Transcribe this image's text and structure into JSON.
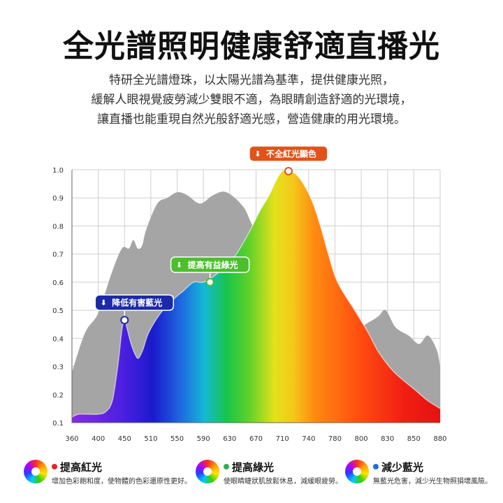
{
  "page": {
    "title": "全光譜照明健康舒適直播光",
    "description_lines": [
      "特研全光譜燈珠，以太陽光譜為基準，提供健康光照，",
      "緩解人眼視覺疲勞減少雙眼不適，為眼睛創造舒適的光環境，",
      "讓直播也能重現自然光般舒適光感，營造健康的用光環境。"
    ]
  },
  "chart_data": {
    "type": "area",
    "title": "",
    "xlabel": "",
    "ylabel": "",
    "xlim": [
      360,
      880
    ],
    "ylim": [
      0.1,
      1.0
    ],
    "x_ticks": [
      360,
      400,
      450,
      510,
      550,
      590,
      630,
      670,
      710,
      740,
      780,
      800,
      830,
      850,
      880
    ],
    "y_ticks": [
      0.1,
      0.2,
      0.3,
      0.4,
      0.5,
      0.6,
      0.7,
      0.8,
      0.9,
      1.0
    ],
    "grid": true,
    "series": [
      {
        "style": "gray-filled-area",
        "points": [
          [
            360,
            0.28
          ],
          [
            380,
            0.42
          ],
          [
            400,
            0.49
          ],
          [
            425,
            0.63
          ],
          [
            445,
            0.72
          ],
          [
            460,
            0.72
          ],
          [
            470,
            0.75
          ],
          [
            480,
            0.72
          ],
          [
            490,
            0.73
          ],
          [
            500,
            0.79
          ],
          [
            520,
            0.88
          ],
          [
            535,
            0.9
          ],
          [
            550,
            0.92
          ],
          [
            565,
            0.91
          ],
          [
            585,
            0.88
          ],
          [
            605,
            0.91
          ],
          [
            625,
            0.92
          ],
          [
            650,
            0.87
          ],
          [
            665,
            0.8
          ],
          [
            690,
            0.7
          ],
          [
            720,
            0.68
          ],
          [
            745,
            0.66
          ],
          [
            760,
            0.62
          ],
          [
            770,
            0.56
          ],
          [
            783,
            0.52
          ],
          [
            795,
            0.44
          ],
          [
            810,
            0.46
          ],
          [
            820,
            0.48
          ],
          [
            828,
            0.5
          ],
          [
            836,
            0.44
          ],
          [
            846,
            0.41
          ],
          [
            856,
            0.38
          ],
          [
            866,
            0.41
          ],
          [
            876,
            0.36
          ],
          [
            880,
            0.3
          ]
        ]
      },
      {
        "style": "rainbow-filled-area",
        "points": [
          [
            360,
            0.12
          ],
          [
            370,
            0.13
          ],
          [
            385,
            0.13
          ],
          [
            400,
            0.13
          ],
          [
            415,
            0.14
          ],
          [
            427,
            0.18
          ],
          [
            437,
            0.3
          ],
          [
            445,
            0.43
          ],
          [
            450,
            0.47
          ],
          [
            455,
            0.44
          ],
          [
            465,
            0.38
          ],
          [
            475,
            0.34
          ],
          [
            482,
            0.33
          ],
          [
            492,
            0.36
          ],
          [
            505,
            0.42
          ],
          [
            525,
            0.49
          ],
          [
            545,
            0.54
          ],
          [
            560,
            0.57
          ],
          [
            575,
            0.6
          ],
          [
            590,
            0.6
          ],
          [
            605,
            0.62
          ],
          [
            620,
            0.65
          ],
          [
            640,
            0.7
          ],
          [
            660,
            0.78
          ],
          [
            675,
            0.85
          ],
          [
            690,
            0.91
          ],
          [
            700,
            0.96
          ],
          [
            708,
            0.99
          ],
          [
            715,
            1.0
          ],
          [
            723,
            0.99
          ],
          [
            732,
            0.96
          ],
          [
            745,
            0.89
          ],
          [
            758,
            0.8
          ],
          [
            770,
            0.7
          ],
          [
            782,
            0.6
          ],
          [
            795,
            0.5
          ],
          [
            808,
            0.42
          ],
          [
            820,
            0.35
          ],
          [
            835,
            0.28
          ],
          [
            850,
            0.22
          ],
          [
            865,
            0.18
          ],
          [
            875,
            0.16
          ],
          [
            880,
            0.15
          ]
        ]
      }
    ],
    "annotations": [
      {
        "label": "降低有害藍光",
        "x": 450,
        "y": 0.465,
        "color": "#1c2aa8"
      },
      {
        "label": "提高有益綠光",
        "x": 600,
        "y": 0.6,
        "color": "#4bbf2c"
      },
      {
        "label": "不全紅光顯色",
        "x": 717,
        "y": 0.995,
        "color": "#e2531a"
      }
    ],
    "colors": {
      "gray": "#a5a5a5",
      "grid": "#cfcfcf",
      "axis": "#666666",
      "marker_fill": "#ffffff"
    }
  },
  "features": [
    {
      "title": "提高紅光",
      "desc": "增加色彩飽和度，使物體的色彩還原性更好。",
      "dot_color": "#e8232a"
    },
    {
      "title": "提高綠光",
      "desc": "使眼睛睫狀肌放鬆休息，減緩眼疲勞。",
      "dot_color": "#2bb24c"
    },
    {
      "title": "減少藍光",
      "desc": "無藍光危害，減少光生物照損壞風險。",
      "dot_color": "#1f6fd6"
    }
  ]
}
